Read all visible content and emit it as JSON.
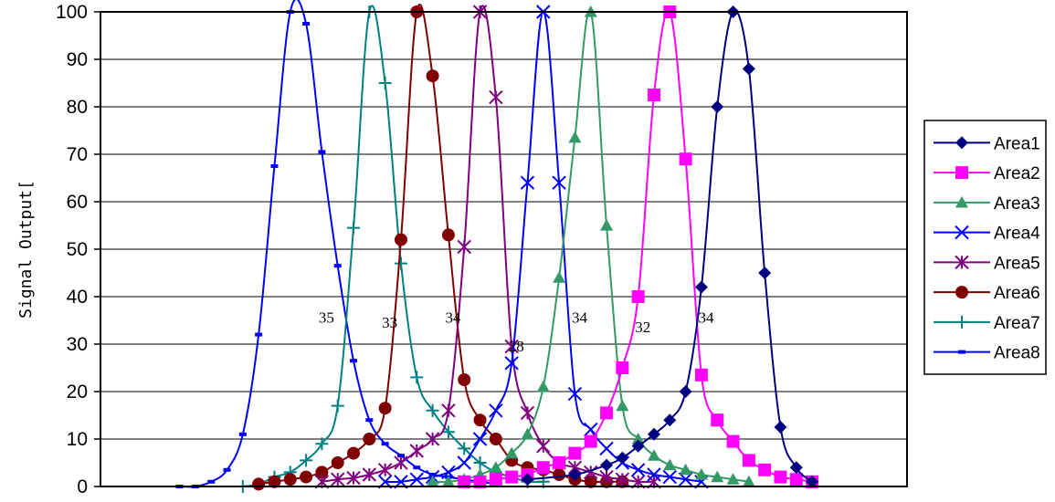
{
  "chart_data": {
    "type": "line",
    "title": "",
    "xlabel": "",
    "ylabel": "Signal Output[",
    "ylim": [
      0,
      100
    ],
    "yticks": [
      0,
      10,
      20,
      30,
      40,
      50,
      60,
      70,
      80,
      90,
      100
    ],
    "grid": "horizontal",
    "legend_position": "right",
    "annotations": [
      {
        "text": "35",
        "x": 18.8,
        "y": 34.5
      },
      {
        "text": "33",
        "x": 22.8,
        "y": 33.5
      },
      {
        "text": "34",
        "x": 26.8,
        "y": 34.5
      },
      {
        "text": "28",
        "x": 30.8,
        "y": 28.5
      },
      {
        "text": "34",
        "x": 34.8,
        "y": 34.5
      },
      {
        "text": "32",
        "x": 38.8,
        "y": 32.5
      },
      {
        "text": "34",
        "x": 42.8,
        "y": 34.5
      }
    ],
    "series": [
      {
        "name": "Area1",
        "color": "#000080",
        "marker": "diamond",
        "x": [
          32,
          35,
          37,
          38,
          39,
          40,
          41,
          42,
          43,
          44,
          45,
          46,
          47,
          48,
          49,
          50
        ],
        "y": [
          1.5,
          2.5,
          4.5,
          6,
          8.5,
          11,
          14,
          20,
          42,
          80,
          100,
          88,
          45,
          12.5,
          4,
          1
        ]
      },
      {
        "name": "Area2",
        "color": "#ff00ff",
        "marker": "square",
        "x": [
          28,
          29,
          30,
          31,
          32,
          33,
          34,
          35,
          36,
          37,
          38,
          39,
          40,
          41,
          42,
          43,
          44,
          45,
          46,
          47,
          48,
          49,
          50
        ],
        "y": [
          1,
          1,
          1.5,
          2,
          2.5,
          4,
          5,
          7,
          9.5,
          15.5,
          25,
          40,
          82.5,
          100,
          69,
          23.5,
          14,
          9.5,
          5.5,
          3.5,
          2,
          1.5,
          1
        ]
      },
      {
        "name": "Area3",
        "color": "#339966",
        "marker": "triangle",
        "x": [
          26,
          27,
          28,
          29,
          30,
          31,
          32,
          33,
          34,
          35,
          36,
          37,
          38,
          39,
          40,
          41,
          42,
          43,
          44,
          45,
          46
        ],
        "y": [
          1,
          1,
          1.5,
          2.5,
          4,
          7,
          11,
          21,
          44,
          73.5,
          100,
          55,
          17,
          10,
          6.5,
          4.5,
          3.5,
          2.5,
          2,
          1.5,
          1
        ]
      },
      {
        "name": "Area4",
        "color": "#0000ff",
        "marker": "x",
        "x": [
          23,
          24,
          25,
          26,
          27,
          28,
          29,
          30,
          31,
          32,
          33,
          34,
          35,
          36,
          37,
          38,
          39,
          40,
          41,
          42,
          43
        ],
        "y": [
          1,
          1,
          1.5,
          2,
          3,
          5,
          10,
          16,
          26,
          64,
          100,
          64,
          19.5,
          12,
          8,
          5,
          3.5,
          2.5,
          2,
          1.5,
          1
        ]
      },
      {
        "name": "Area5",
        "color": "#800080",
        "marker": "star",
        "x": [
          19,
          20,
          21,
          22,
          23,
          24,
          25,
          26,
          27,
          28,
          29,
          30,
          31,
          32,
          33,
          34,
          35,
          36,
          37,
          38,
          39,
          40
        ],
        "y": [
          1,
          1.5,
          1.8,
          2.5,
          3.5,
          5,
          7.5,
          10,
          16,
          50.5,
          100,
          82,
          29.5,
          15.5,
          8.5,
          5,
          4,
          3,
          2,
          1.5,
          1,
          1
        ]
      },
      {
        "name": "Area6",
        "color": "#800000",
        "marker": "circle",
        "x": [
          15,
          16,
          17,
          18,
          19,
          20,
          21,
          22,
          23,
          24,
          25,
          26,
          27,
          28,
          29,
          30,
          31,
          32,
          33,
          34,
          35,
          36,
          37,
          38
        ],
        "y": [
          0.5,
          1,
          1.5,
          2,
          3,
          5,
          7,
          10,
          16.5,
          52,
          100,
          86.5,
          53,
          22.5,
          14,
          10,
          5.5,
          4,
          3.5,
          2.5,
          1.5,
          1,
          1,
          1
        ]
      },
      {
        "name": "Area7",
        "color": "#008080",
        "marker": "plus",
        "x": [
          14,
          15,
          16,
          17,
          18,
          19,
          20,
          21,
          22,
          23,
          24,
          25,
          26,
          27,
          28,
          29,
          30,
          31,
          32,
          33
        ],
        "y": [
          0,
          0.5,
          2,
          3,
          5.5,
          9,
          17,
          54.5,
          100,
          85,
          47,
          23,
          16,
          11.5,
          8,
          5,
          3,
          2,
          1,
          1
        ]
      },
      {
        "name": "Area8",
        "color": "#0000ff",
        "marker": "dash",
        "x": [
          10,
          11,
          12,
          13,
          14,
          15,
          16,
          17,
          18,
          19,
          20,
          21,
          22,
          23,
          24,
          25,
          26,
          27,
          28,
          29,
          30
        ],
        "y": [
          0,
          0,
          1,
          3.5,
          11,
          32,
          67.5,
          100,
          97.5,
          70.5,
          46.5,
          26.5,
          14,
          9,
          6.5,
          4,
          2.5,
          2,
          1.5,
          1,
          0.5
        ]
      }
    ]
  }
}
